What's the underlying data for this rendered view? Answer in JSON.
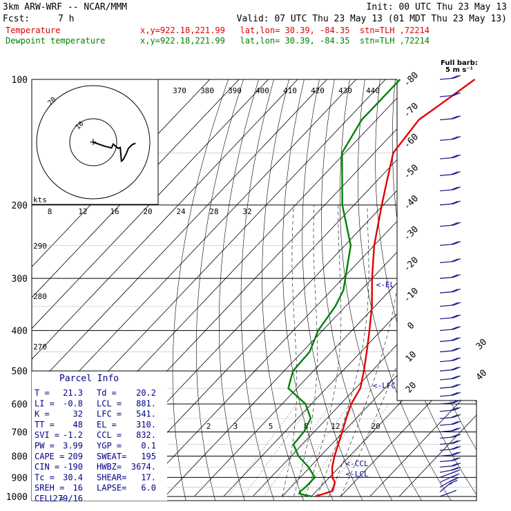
{
  "header": {
    "model": "3km ARW-WRF -- NCAR/MMM",
    "init": "Init: 00 UTC Thu 23 May 13",
    "fcst_label": "Fcst:",
    "fcst_value": "7 h",
    "valid": "Valid: 07 UTC Thu 23 May 13 (01 MDT Thu 23 May 13)"
  },
  "legend": [
    {
      "name": "Temperature",
      "loc": "x,y=922.18,221.99   lat,lon= 30.39, -84.35  stn=TLH ,72214",
      "color": "#e00000"
    },
    {
      "name": "Dewpoint temperature",
      "loc": "x,y=922.18,221.99   lat,lon= 30.39, -84.35  stn=TLH ,72214",
      "color": "#008000"
    }
  ],
  "full_barb_label": [
    "Full barb:",
    "5 m s⁻¹"
  ],
  "parcel_info": {
    "title": "Parcel Info",
    "rows": [
      [
        "T  =",
        "21.3",
        "Td =",
        "20.2"
      ],
      [
        "LI =",
        "-0.8",
        "LCL =",
        "881."
      ],
      [
        "K  =",
        "32",
        "LFC =",
        "541."
      ],
      [
        "TT =",
        "48",
        "EL  =",
        "310."
      ],
      [
        "SVI =",
        "-1.2",
        "CCL =",
        "832."
      ],
      [
        "PW =",
        "3.99",
        "YGP =",
        "0.1"
      ],
      [
        "CAPE =",
        "209",
        "SWEAT=",
        "195"
      ],
      [
        "CIN =",
        "-190",
        "HWBZ=",
        "3674."
      ],
      [
        "Tc =",
        "30.4",
        "SHEAR=",
        "17."
      ],
      [
        "SREH =",
        "16",
        "LAPSE=",
        "6.0"
      ],
      [
        "CELL =",
        "279/16",
        "",
        ""
      ]
    ]
  },
  "hodograph": {
    "units": "kts",
    "ring_labels": [
      "10",
      "20"
    ],
    "trace_kts": [
      [
        0,
        0
      ],
      [
        5.2,
        -1.8
      ],
      [
        7.8,
        -2.4
      ],
      [
        8.5,
        -0.8
      ],
      [
        10.6,
        -2.6
      ],
      [
        11.5,
        -2.2
      ],
      [
        11.8,
        -5.5
      ],
      [
        12.0,
        -8.0
      ],
      [
        12.8,
        -7.4
      ],
      [
        14.0,
        -5.0
      ],
      [
        15.0,
        -2.6
      ],
      [
        16.6,
        -1.0
      ],
      [
        18.0,
        -0.4
      ]
    ]
  },
  "colors": {
    "temperature": "#e00000",
    "dewpoint": "#008000",
    "isotherm": "#000000",
    "barbs": "#20208c",
    "annotation": "#00008b"
  },
  "chart_data": {
    "type": "skew-t log-p sounding",
    "y_axis": {
      "scale": "log",
      "range_hPa": [
        1000,
        100
      ],
      "ticks": [
        100,
        200,
        300,
        400,
        500,
        600,
        700,
        800,
        900,
        1000
      ]
    },
    "isotherm_labels": [
      -80,
      -70,
      -60,
      -50,
      -40,
      -30,
      -20,
      -10,
      0,
      10,
      20,
      30,
      40
    ],
    "theta_labels": [
      370,
      380,
      390,
      400,
      410,
      420,
      430,
      440
    ],
    "theta_lower_labels": [
      290,
      280,
      270
    ],
    "mixing_ratio_labels": [
      2,
      3,
      5,
      8,
      12,
      20
    ],
    "hodo_speed_labels": [
      8,
      12,
      16,
      20,
      24,
      28,
      32
    ],
    "series": [
      {
        "name": "Temperature",
        "color": "#e00000",
        "points": [
          [
            1000,
            21.3
          ],
          [
            970,
            25.5
          ],
          [
            925,
            23.5
          ],
          [
            900,
            21.0
          ],
          [
            850,
            17.6
          ],
          [
            800,
            14.8
          ],
          [
            750,
            12.3
          ],
          [
            700,
            9.6
          ],
          [
            650,
            6.6
          ],
          [
            600,
            3.6
          ],
          [
            550,
            1.6
          ],
          [
            500,
            -2.8
          ],
          [
            450,
            -8.0
          ],
          [
            400,
            -14.0
          ],
          [
            350,
            -21.0
          ],
          [
            300,
            -30.0
          ],
          [
            250,
            -40.0
          ],
          [
            200,
            -50.5
          ],
          [
            175,
            -56.6
          ],
          [
            150,
            -63.5
          ],
          [
            125,
            -65.5
          ],
          [
            110,
            -62.0
          ],
          [
            100,
            -59.5
          ]
        ]
      },
      {
        "name": "Dewpoint temperature",
        "color": "#008000",
        "points": [
          [
            1000,
            20.2
          ],
          [
            985,
            15.0
          ],
          [
            975,
            14.5
          ],
          [
            950,
            15.0
          ],
          [
            900,
            15.0
          ],
          [
            850,
            9.5
          ],
          [
            800,
            2.5
          ],
          [
            750,
            -3.0
          ],
          [
            700,
            -3.5
          ],
          [
            650,
            -5.5
          ],
          [
            600,
            -12.0
          ],
          [
            550,
            -23.0
          ],
          [
            500,
            -27.0
          ],
          [
            450,
            -27.5
          ],
          [
            400,
            -31.5
          ],
          [
            350,
            -33.5
          ],
          [
            320,
            -36.0
          ],
          [
            250,
            -48.0
          ],
          [
            200,
            -64.0
          ],
          [
            150,
            -81.0
          ],
          [
            125,
            -85.0
          ],
          [
            100,
            -85.0
          ]
        ]
      }
    ],
    "annotations": [
      {
        "text": "<-EL",
        "p": 310
      },
      {
        "text": "<-LFC",
        "p": 541
      },
      {
        "text": "<-CCL",
        "p": 832
      },
      {
        "text": "<-LCL",
        "p": 881
      }
    ],
    "wind_barbs_kts": [
      {
        "p": 1000,
        "dir": 250,
        "spd": 5
      },
      {
        "p": 975,
        "dir": 230,
        "spd": 15
      },
      {
        "p": 950,
        "dir": 240,
        "spd": 20
      },
      {
        "p": 925,
        "dir": 245,
        "spd": 20
      },
      {
        "p": 900,
        "dir": 250,
        "spd": 20
      },
      {
        "p": 875,
        "dir": 260,
        "spd": 20
      },
      {
        "p": 850,
        "dir": 265,
        "spd": 20
      },
      {
        "p": 825,
        "dir": 265,
        "spd": 20
      },
      {
        "p": 800,
        "dir": 265,
        "spd": 20
      },
      {
        "p": 775,
        "dir": 265,
        "spd": 20
      },
      {
        "p": 750,
        "dir": 265,
        "spd": 20
      },
      {
        "p": 725,
        "dir": 265,
        "spd": 20
      },
      {
        "p": 700,
        "dir": 265,
        "spd": 20
      },
      {
        "p": 675,
        "dir": 265,
        "spd": 20
      },
      {
        "p": 650,
        "dir": 265,
        "spd": 20
      },
      {
        "p": 625,
        "dir": 265,
        "spd": 20
      },
      {
        "p": 600,
        "dir": 265,
        "spd": 20
      },
      {
        "p": 575,
        "dir": 265,
        "spd": 20
      },
      {
        "p": 550,
        "dir": 265,
        "spd": 20
      },
      {
        "p": 525,
        "dir": 265,
        "spd": 20
      },
      {
        "p": 500,
        "dir": 265,
        "spd": 20
      },
      {
        "p": 475,
        "dir": 265,
        "spd": 20
      },
      {
        "p": 450,
        "dir": 265,
        "spd": 20
      },
      {
        "p": 425,
        "dir": 265,
        "spd": 20
      },
      {
        "p": 400,
        "dir": 265,
        "spd": 20
      },
      {
        "p": 375,
        "dir": 265,
        "spd": 20
      },
      {
        "p": 350,
        "dir": 265,
        "spd": 20
      },
      {
        "p": 325,
        "dir": 265,
        "spd": 20
      },
      {
        "p": 300,
        "dir": 265,
        "spd": 20
      },
      {
        "p": 275,
        "dir": 265,
        "spd": 20
      },
      {
        "p": 250,
        "dir": 265,
        "spd": 20
      },
      {
        "p": 225,
        "dir": 265,
        "spd": 20
      },
      {
        "p": 200,
        "dir": 265,
        "spd": 20
      },
      {
        "p": 185,
        "dir": 265,
        "spd": 20
      },
      {
        "p": 170,
        "dir": 265,
        "spd": 20
      },
      {
        "p": 155,
        "dir": 265,
        "spd": 20
      },
      {
        "p": 140,
        "dir": 265,
        "spd": 20
      },
      {
        "p": 125,
        "dir": 265,
        "spd": 20
      },
      {
        "p": 110,
        "dir": 265,
        "spd": 20
      },
      {
        "p": 100,
        "dir": 265,
        "spd": 20
      }
    ]
  }
}
